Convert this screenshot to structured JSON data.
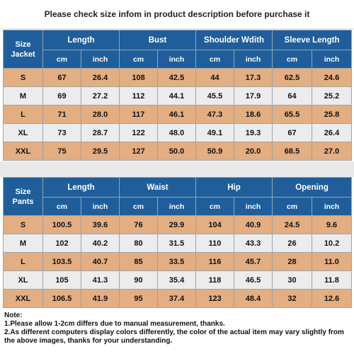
{
  "banner": "Please check size infom in product description before purchase it",
  "jacket": {
    "corner": [
      "Size",
      "Jacket"
    ],
    "groups": [
      "Length",
      "Bust",
      "Shoulder Wdith",
      "Sleeve Length"
    ],
    "units": [
      "cm",
      "inch",
      "cm",
      "inch",
      "cm",
      "inch",
      "cm",
      "inch"
    ],
    "rows": [
      [
        "S",
        "67",
        "26.4",
        "108",
        "42.5",
        "44",
        "17.3",
        "62.5",
        "24.6"
      ],
      [
        "M",
        "69",
        "27.2",
        "112",
        "44.1",
        "45.5",
        "17.9",
        "64",
        "25.2"
      ],
      [
        "L",
        "71",
        "28.0",
        "117",
        "46.1",
        "47.3",
        "18.6",
        "65.5",
        "25.8"
      ],
      [
        "XL",
        "73",
        "28.7",
        "122",
        "48.0",
        "49.1",
        "19.3",
        "67",
        "26.4"
      ],
      [
        "XXL",
        "75",
        "29.5",
        "127",
        "50.0",
        "50.9",
        "20.0",
        "68.5",
        "27.0"
      ]
    ]
  },
  "pants": {
    "corner": [
      "Size",
      "Pants"
    ],
    "groups": [
      "Length",
      "Waist",
      "Hip",
      "Opening"
    ],
    "units": [
      "cm",
      "inch",
      "cm",
      "inch",
      "cm",
      "inch",
      "cm",
      "inch"
    ],
    "rows": [
      [
        "S",
        "100.5",
        "39.6",
        "76",
        "29.9",
        "104",
        "40.9",
        "24.5",
        "9.6"
      ],
      [
        "M",
        "102",
        "40.2",
        "80",
        "31.5",
        "110",
        "43.3",
        "26",
        "10.2"
      ],
      [
        "L",
        "103.5",
        "40.7",
        "85",
        "33.5",
        "116",
        "45.7",
        "28",
        "11.0"
      ],
      [
        "XL",
        "105",
        "41.3",
        "90",
        "35.4",
        "118",
        "46.5",
        "30",
        "11.8"
      ],
      [
        "XXL",
        "106.5",
        "41.9",
        "95",
        "37.4",
        "123",
        "48.4",
        "32",
        "12.6"
      ]
    ]
  },
  "note": {
    "title": "Note:",
    "lines": [
      "1.Please allow 1-2cm differs due to manual measurement, thanks.",
      "2.As different computers display colors differently, the color of the actual item may vary slightly from the above images,  thanks for your understanding."
    ]
  }
}
